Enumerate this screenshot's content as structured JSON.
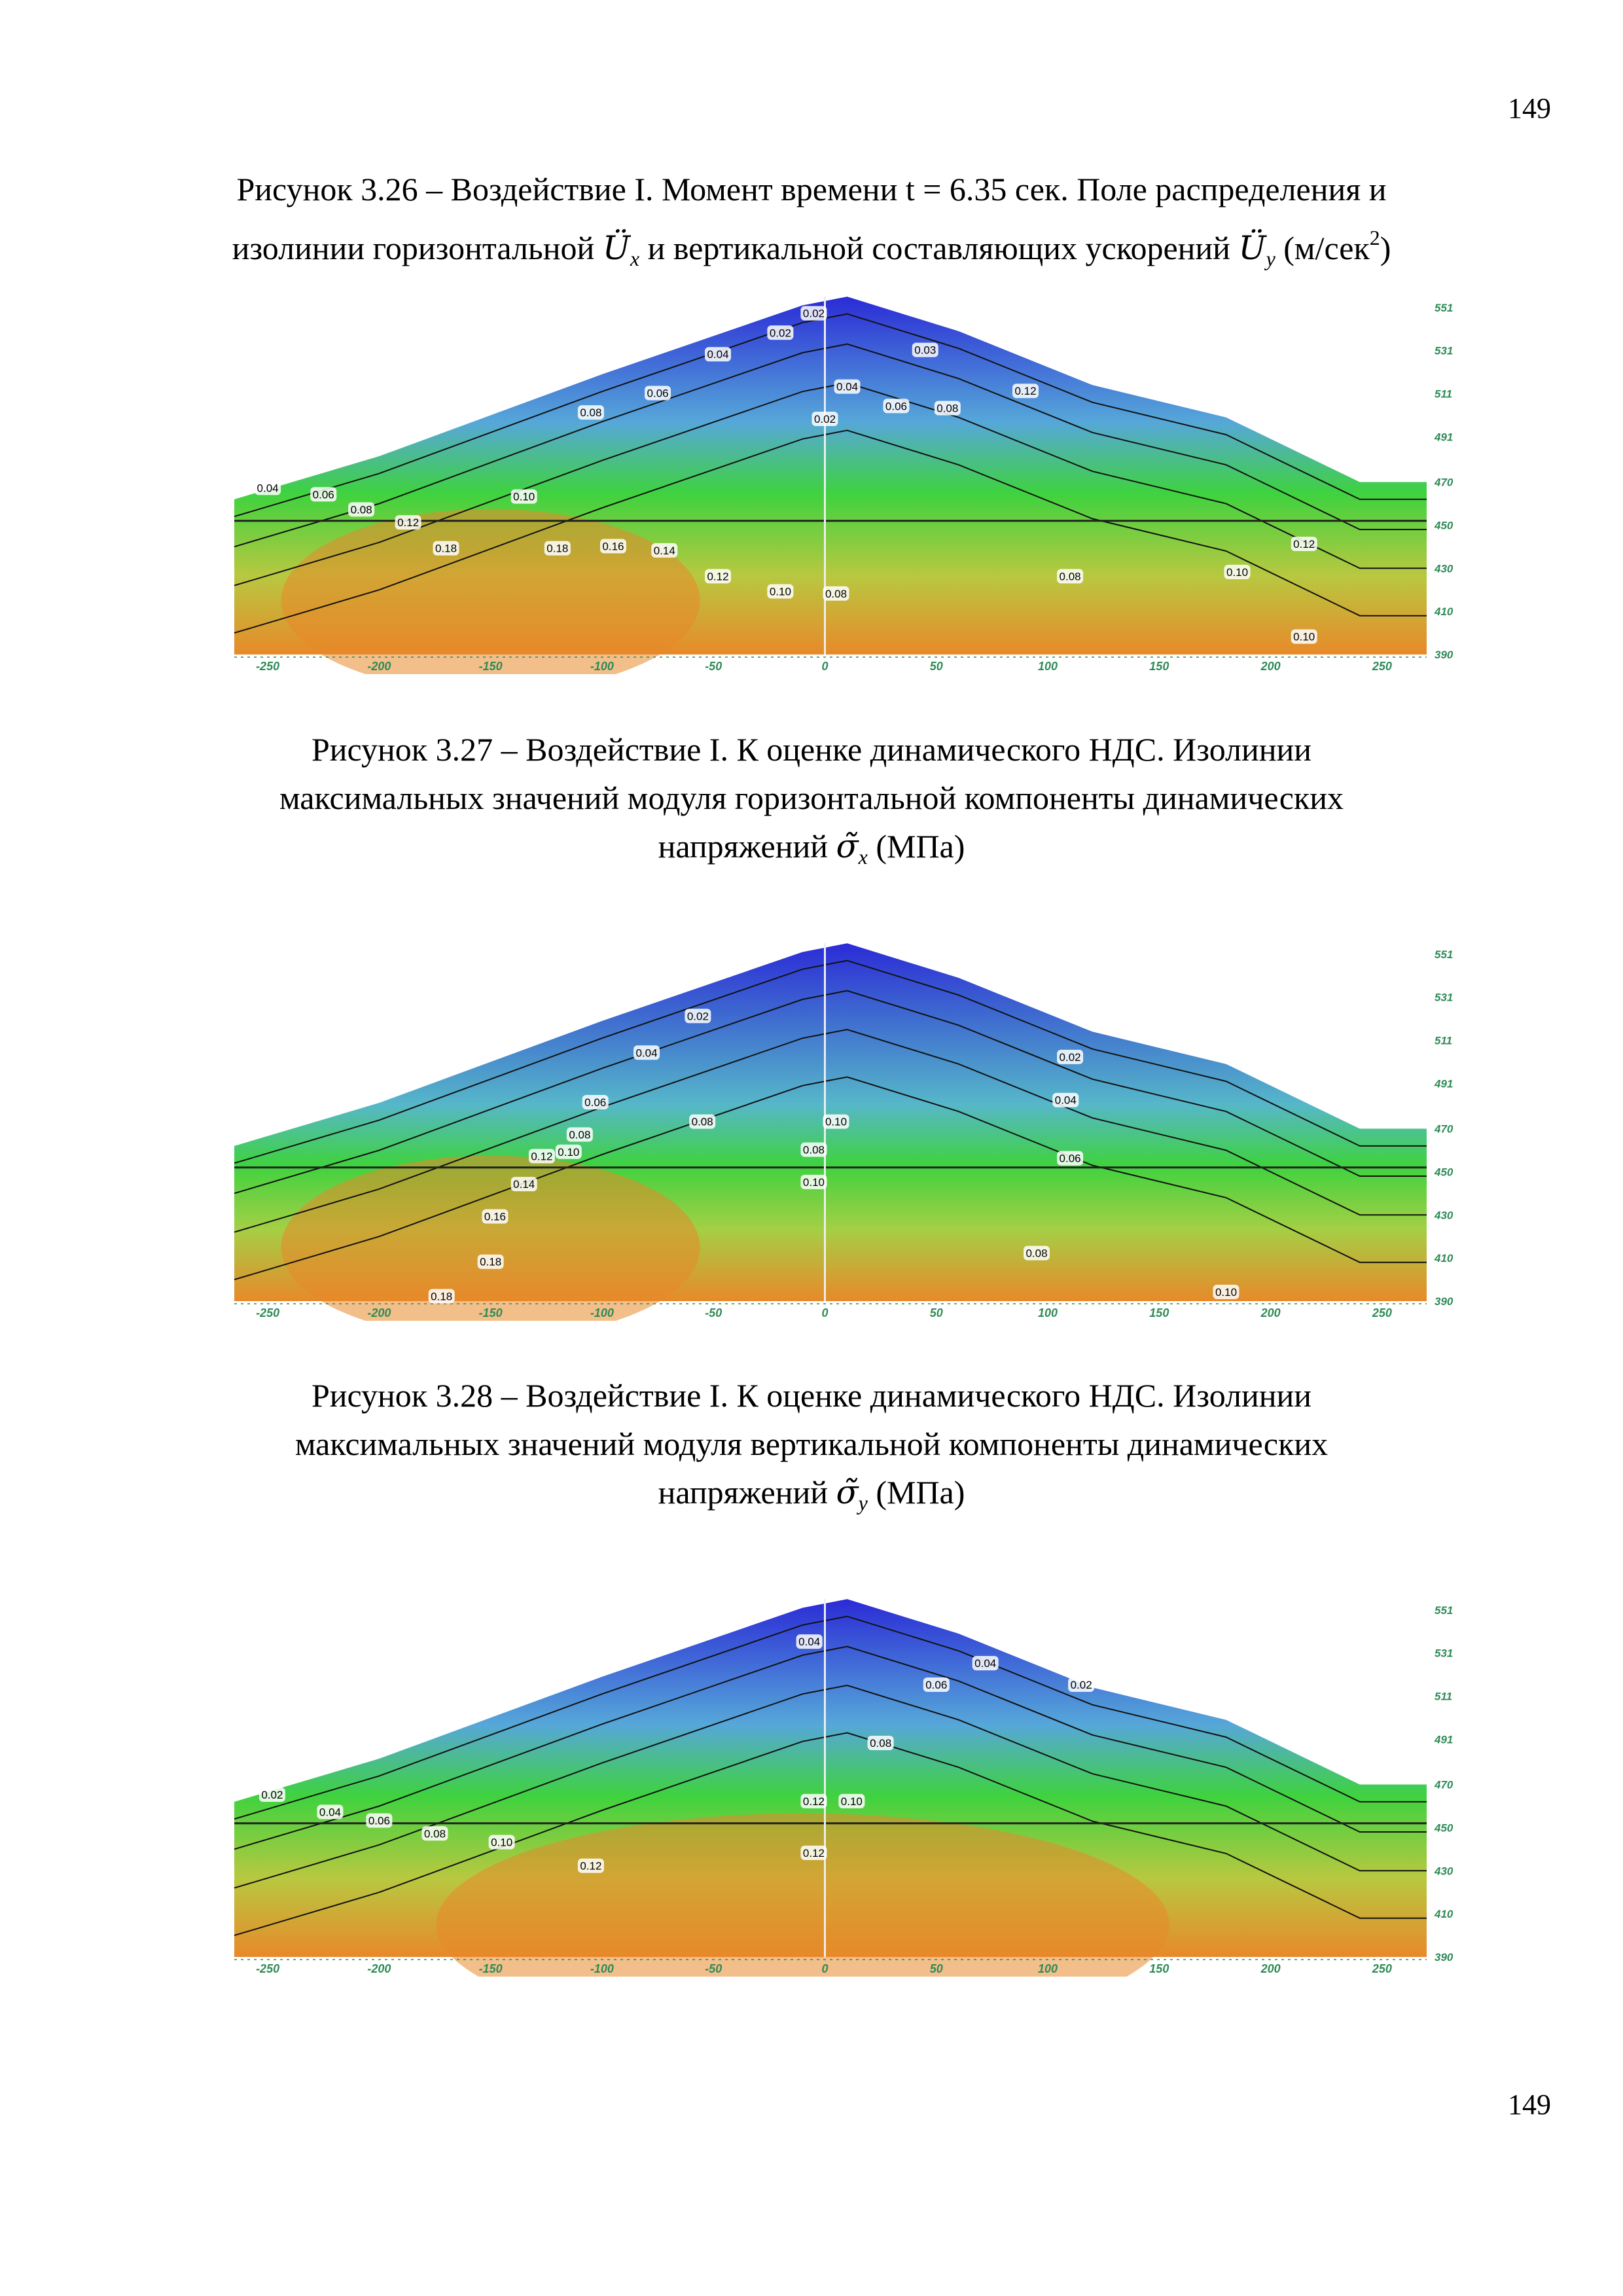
{
  "page_number_top": "149",
  "page_number_bottom": "149",
  "captions": {
    "fig326": {
      "line1": "Рисунок 3.26 – Воздействие I. Момент времени t = 6.35 сек. Поле распределения и",
      "line2_a": "изолинии горизонтальной",
      "sym_x": "Ü",
      "sub_x": "x",
      "line2_b": "и вертикальной составляющих ускорений",
      "sym_y": "Ü",
      "sub_y": "y",
      "unit_a": "(м/сек",
      "unit_sup": "2",
      "unit_b": ")"
    },
    "fig327": {
      "line1": "Рисунок 3.27 – Воздействие I. К оценке динамического НДС. Изолинии",
      "line2": "максимальных значений модуля горизонтальной компоненты динамических",
      "line3_a": "напряжений",
      "sym": "σ̃",
      "sub": "x",
      "line3_b": "(МПа)"
    },
    "fig328": {
      "line1": "Рисунок 3.28 – Воздействие I. К оценке динамического НДС. Изолинии",
      "line2": "максимальных значений модуля вертикальной компоненты динамических",
      "line3_a": "напряжений",
      "sym": "σ̃",
      "sub": "y",
      "line3_b": "(МПа)"
    }
  },
  "chart_data": [
    {
      "type": "heatmap",
      "x_ticks": [
        "-250",
        "-200",
        "-150",
        "-100",
        "-50",
        "0",
        "50",
        "100",
        "150",
        "200",
        "250"
      ],
      "y_ticks": [
        "551",
        "531",
        "511",
        "491",
        "470",
        "450",
        "430",
        "410",
        "390"
      ],
      "xlim": [
        -265,
        270
      ],
      "ylim": [
        390,
        557
      ],
      "colors": {
        "low": "#2b2bd6",
        "mid": "#3fd23f",
        "high": "#e8892a"
      },
      "contour_labels": [
        {
          "x": -5,
          "y": 548,
          "text": "0.02"
        },
        {
          "x": -20,
          "y": 539,
          "text": "0.02"
        },
        {
          "x": -48,
          "y": 529,
          "text": "0.04"
        },
        {
          "x": 45,
          "y": 531,
          "text": "0.03"
        },
        {
          "x": -75,
          "y": 511,
          "text": "0.06"
        },
        {
          "x": 10,
          "y": 514,
          "text": "0.04"
        },
        {
          "x": 32,
          "y": 505,
          "text": "0.06"
        },
        {
          "x": 55,
          "y": 504,
          "text": "0.08"
        },
        {
          "x": 90,
          "y": 512,
          "text": "0.12"
        },
        {
          "x": -105,
          "y": 502,
          "text": "0.08"
        },
        {
          "x": 0,
          "y": 499,
          "text": "0.02"
        },
        {
          "x": -250,
          "y": 467,
          "text": "0.04"
        },
        {
          "x": -225,
          "y": 464,
          "text": "0.06"
        },
        {
          "x": -208,
          "y": 457,
          "text": "0.08"
        },
        {
          "x": -135,
          "y": 463,
          "text": "0.10"
        },
        {
          "x": -187,
          "y": 451,
          "text": "0.12"
        },
        {
          "x": -170,
          "y": 439,
          "text": "0.18"
        },
        {
          "x": -120,
          "y": 439,
          "text": "0.18"
        },
        {
          "x": -95,
          "y": 440,
          "text": "0.16"
        },
        {
          "x": -72,
          "y": 438,
          "text": "0.14"
        },
        {
          "x": -48,
          "y": 426,
          "text": "0.12"
        },
        {
          "x": -20,
          "y": 419,
          "text": "0.10"
        },
        {
          "x": 5,
          "y": 418,
          "text": "0.08"
        },
        {
          "x": 110,
          "y": 426,
          "text": "0.08"
        },
        {
          "x": 185,
          "y": 428,
          "text": "0.10"
        },
        {
          "x": 215,
          "y": 441,
          "text": "0.12"
        },
        {
          "x": 215,
          "y": 398,
          "text": "0.10"
        }
      ]
    },
    {
      "type": "heatmap",
      "x_ticks": [
        "-250",
        "-200",
        "-150",
        "-100",
        "-50",
        "0",
        "50",
        "100",
        "150",
        "200",
        "250"
      ],
      "y_ticks": [
        "551",
        "531",
        "511",
        "491",
        "470",
        "450",
        "430",
        "410",
        "390"
      ],
      "xlim": [
        -265,
        270
      ],
      "ylim": [
        390,
        557
      ],
      "colors": {
        "low": "#2b2bd6",
        "mid": "#3fd23f",
        "high": "#e8892a"
      },
      "contour_labels": [
        {
          "x": -57,
          "y": 522,
          "text": "0.02"
        },
        {
          "x": -80,
          "y": 505,
          "text": "0.04"
        },
        {
          "x": -103,
          "y": 482,
          "text": "0.06"
        },
        {
          "x": -110,
          "y": 467,
          "text": "0.08"
        },
        {
          "x": -55,
          "y": 473,
          "text": "0.08"
        },
        {
          "x": -127,
          "y": 457,
          "text": "0.12"
        },
        {
          "x": -115,
          "y": 459,
          "text": "0.10"
        },
        {
          "x": -135,
          "y": 444,
          "text": "0.14"
        },
        {
          "x": -148,
          "y": 429,
          "text": "0.16"
        },
        {
          "x": -150,
          "y": 408,
          "text": "0.18"
        },
        {
          "x": -172,
          "y": 392,
          "text": "0.18"
        },
        {
          "x": 5,
          "y": 473,
          "text": "0.10"
        },
        {
          "x": -5,
          "y": 460,
          "text": "0.08"
        },
        {
          "x": -5,
          "y": 445,
          "text": "0.10"
        },
        {
          "x": 110,
          "y": 503,
          "text": "0.02"
        },
        {
          "x": 108,
          "y": 483,
          "text": "0.04"
        },
        {
          "x": 110,
          "y": 456,
          "text": "0.06"
        },
        {
          "x": 95,
          "y": 412,
          "text": "0.08"
        },
        {
          "x": 180,
          "y": 394,
          "text": "0.10"
        }
      ]
    },
    {
      "type": "heatmap",
      "x_ticks": [
        "-250",
        "-200",
        "-150",
        "-100",
        "-50",
        "0",
        "50",
        "100",
        "150",
        "200",
        "250"
      ],
      "y_ticks": [
        "551",
        "531",
        "511",
        "491",
        "470",
        "450",
        "430",
        "410",
        "390"
      ],
      "xlim": [
        -265,
        270
      ],
      "ylim": [
        390,
        557
      ],
      "colors": {
        "low": "#2b2bd6",
        "mid": "#3fd23f",
        "high": "#e8892a"
      },
      "contour_labels": [
        {
          "x": -7,
          "y": 536,
          "text": "0.04"
        },
        {
          "x": 72,
          "y": 526,
          "text": "0.04"
        },
        {
          "x": 50,
          "y": 516,
          "text": "0.06"
        },
        {
          "x": 115,
          "y": 516,
          "text": "0.02"
        },
        {
          "x": 25,
          "y": 489,
          "text": "0.08"
        },
        {
          "x": -248,
          "y": 465,
          "text": "0.02"
        },
        {
          "x": -222,
          "y": 457,
          "text": "0.04"
        },
        {
          "x": -200,
          "y": 453,
          "text": "0.06"
        },
        {
          "x": -175,
          "y": 447,
          "text": "0.08"
        },
        {
          "x": -145,
          "y": 443,
          "text": "0.10"
        },
        {
          "x": -105,
          "y": 432,
          "text": "0.12"
        },
        {
          "x": -5,
          "y": 462,
          "text": "0.12"
        },
        {
          "x": -5,
          "y": 438,
          "text": "0.12"
        },
        {
          "x": 12,
          "y": 462,
          "text": "0.10"
        }
      ]
    }
  ]
}
